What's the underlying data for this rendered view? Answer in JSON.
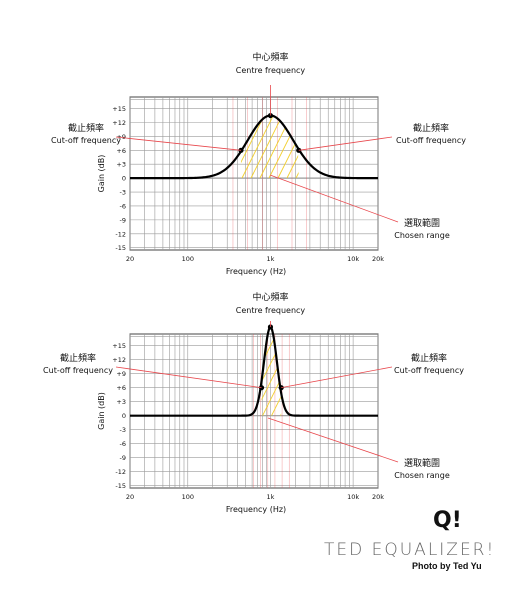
{
  "axis": {
    "y_title": "Gain (dB)",
    "x_title": "Frequency (Hz)",
    "y_ticks": [
      "+15",
      "+12",
      "+9",
      "+6",
      "+3",
      "0",
      "-3",
      "-6",
      "-9",
      "-12",
      "-15"
    ],
    "x_ticks": [
      "20",
      "100",
      "1k",
      "10k",
      "20k"
    ]
  },
  "diagrams": [
    {
      "centre_label_zh": "中心頻率",
      "centre_label_en": "Centre frequency",
      "cutoff_left_zh": "截止頻率",
      "cutoff_left_en": "Cut-off frequency",
      "cutoff_right_zh": "截止頻率",
      "cutoff_right_en": "Cut-off frequency",
      "range_zh": "選取範圍",
      "range_en": "Chosen range",
      "peak_gain_db": 13.5,
      "centre_hz": 1000,
      "cutoff_low_hz": 440,
      "cutoff_high_hz": 2200,
      "cutoff_gain_db": 6
    },
    {
      "centre_label_zh": "中心頻率",
      "centre_label_en": "Centre frequency",
      "cutoff_left_zh": "截止頻率",
      "cutoff_left_en": "Cut-off frequency",
      "cutoff_right_zh": "截止頻率",
      "cutoff_right_en": "Cut-off frequency",
      "range_zh": "選取範圍",
      "range_en": "Chosen range",
      "peak_gain_db": 19,
      "centre_hz": 1000,
      "cutoff_low_hz": 780,
      "cutoff_high_hz": 1350,
      "cutoff_gain_db": 6
    }
  ],
  "branding": {
    "logo": "Q!",
    "title": "TED EQUALIZER!",
    "credit": "Photo by Ted Yu"
  },
  "colors": {
    "grid": "#9a9a9a",
    "curve": "#000000",
    "annotation": "#e8474c",
    "hatch": "#f2cf2e"
  }
}
